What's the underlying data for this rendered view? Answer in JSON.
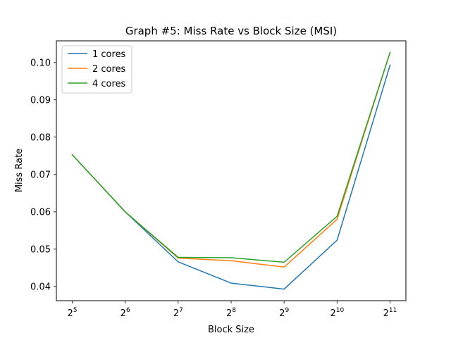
{
  "chart_data": {
    "type": "line",
    "title": "Graph #5: Miss Rate vs Block Size (MSI)",
    "xlabel": "Block Size",
    "ylabel": "Miss Rate",
    "x_scale": "log2",
    "x": [
      32,
      64,
      128,
      256,
      512,
      1024,
      2048
    ],
    "x_tick_labels": [
      {
        "base": "2",
        "exp": "5"
      },
      {
        "base": "2",
        "exp": "6"
      },
      {
        "base": "2",
        "exp": "7"
      },
      {
        "base": "2",
        "exp": "8"
      },
      {
        "base": "2",
        "exp": "9"
      },
      {
        "base": "2",
        "exp": "10"
      },
      {
        "base": "2",
        "exp": "11"
      }
    ],
    "y_ticks": [
      "0.04",
      "0.05",
      "0.06",
      "0.07",
      "0.08",
      "0.09",
      "0.10"
    ],
    "ylim": [
      0.0362,
      0.1058
    ],
    "grid": false,
    "legend_position": "upper-left",
    "series": [
      {
        "name": "1 cores",
        "color": "#1f77b4",
        "values": [
          0.0753,
          0.06,
          0.0466,
          0.0409,
          0.0393,
          0.0524,
          0.0993
        ]
      },
      {
        "name": "2 cores",
        "color": "#ff7f0e",
        "values": [
          0.0753,
          0.06,
          0.0476,
          0.0469,
          0.0452,
          0.058,
          0.1027
        ]
      },
      {
        "name": "4 cores",
        "color": "#2ca02c",
        "values": [
          0.0753,
          0.06,
          0.0478,
          0.0477,
          0.0465,
          0.0588,
          0.1027
        ]
      }
    ]
  }
}
